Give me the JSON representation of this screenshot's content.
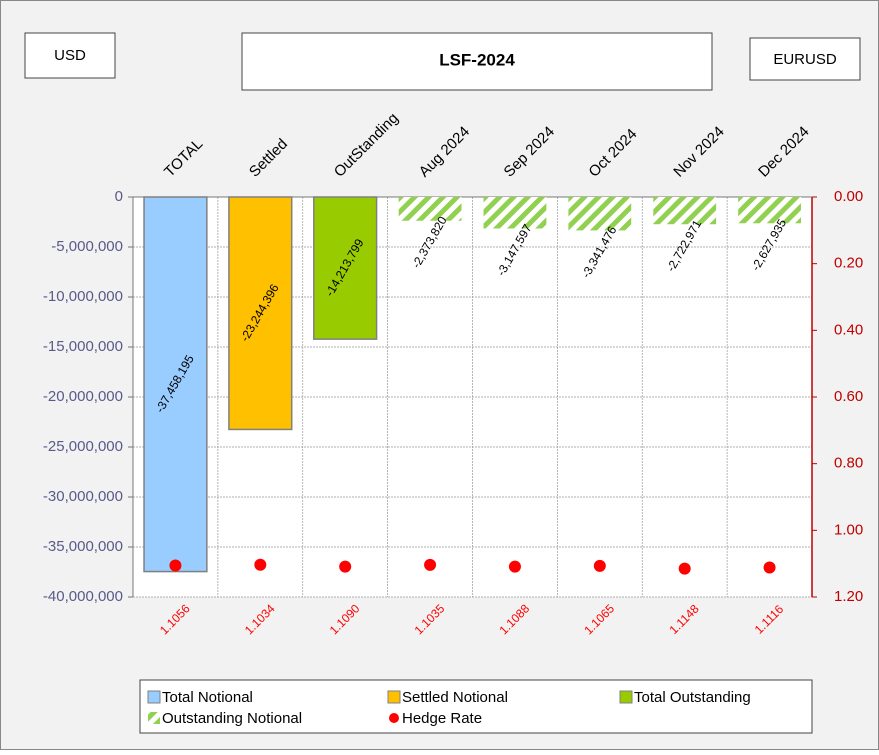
{
  "header": {
    "currency": "USD",
    "title": "LSF-2024",
    "pair": "EURUSD"
  },
  "chart_data": {
    "type": "bar",
    "categories": [
      "TOTAL",
      "Settled",
      "OutStanding",
      "Aug 2024",
      "Sep 2024",
      "Oct 2024",
      "Nov 2024",
      "Dec 2024"
    ],
    "series": [
      {
        "name": "Total Notional",
        "color": "#99ccff",
        "values": [
          -37458195,
          null,
          null,
          null,
          null,
          null,
          null,
          null
        ],
        "value_labels": [
          "-37,458,195",
          null,
          null,
          null,
          null,
          null,
          null,
          null
        ]
      },
      {
        "name": "Settled Notional",
        "color": "#ffc000",
        "values": [
          null,
          -23244396,
          null,
          null,
          null,
          null,
          null,
          null
        ],
        "value_labels": [
          null,
          "-23,244,396",
          null,
          null,
          null,
          null,
          null,
          null
        ]
      },
      {
        "name": "Total Outstanding",
        "color": "#99cc00",
        "values": [
          null,
          null,
          -14213799,
          null,
          null,
          null,
          null,
          null
        ],
        "value_labels": [
          null,
          null,
          "-14,213,799",
          null,
          null,
          null,
          null,
          null
        ]
      },
      {
        "name": "Outstanding Notional",
        "color": "#92d050",
        "pattern": "hatch",
        "values": [
          null,
          null,
          null,
          -2373820,
          -3147597,
          -3341476,
          -2722971,
          -2627935
        ],
        "value_labels": [
          null,
          null,
          null,
          "-2,373,820",
          "-3,147,597",
          "-3,341,476",
          "-2,722,971",
          "-2,627,935"
        ]
      },
      {
        "name": "Hedge Rate",
        "color": "#ff0000",
        "type": "scatter",
        "axis": "y2",
        "values": [
          1.1056,
          1.1034,
          1.109,
          1.1035,
          1.1088,
          1.1065,
          1.1148,
          1.1116
        ],
        "value_labels": [
          "1.1056",
          "1.1034",
          "1.1090",
          "1.1035",
          "1.1088",
          "1.1065",
          "1.1148",
          "1.1116"
        ]
      }
    ],
    "ylim": [
      0,
      -40000000
    ],
    "yticks": [
      0,
      {
        "value": -5000000,
        "label": "-5,000,000"
      },
      {
        "value": -10000000,
        "label": "-10,000,000"
      },
      {
        "value": -15000000,
        "label": "-15,000,000"
      },
      {
        "value": -20000000,
        "label": "-20,000,000"
      },
      {
        "value": -25000000,
        "label": "-25,000,000"
      },
      {
        "value": -30000000,
        "label": "-30,000,000"
      },
      {
        "value": -35000000,
        "label": "-35,000,000"
      },
      {
        "value": -40000000,
        "label": "-40,000,000"
      }
    ],
    "y2lim": [
      0,
      1.2
    ],
    "y2ticks": [
      {
        "value": 0,
        "label": "0.00"
      },
      {
        "value": 0.2,
        "label": "0.20"
      },
      {
        "value": 0.4,
        "label": "0.40"
      },
      {
        "value": 0.6,
        "label": "0.60"
      },
      {
        "value": 0.8,
        "label": "0.80"
      },
      {
        "value": 1.0,
        "label": "1.00"
      },
      {
        "value": 1.2,
        "label": "1.20"
      }
    ],
    "grid": true,
    "legend": "bottom"
  }
}
